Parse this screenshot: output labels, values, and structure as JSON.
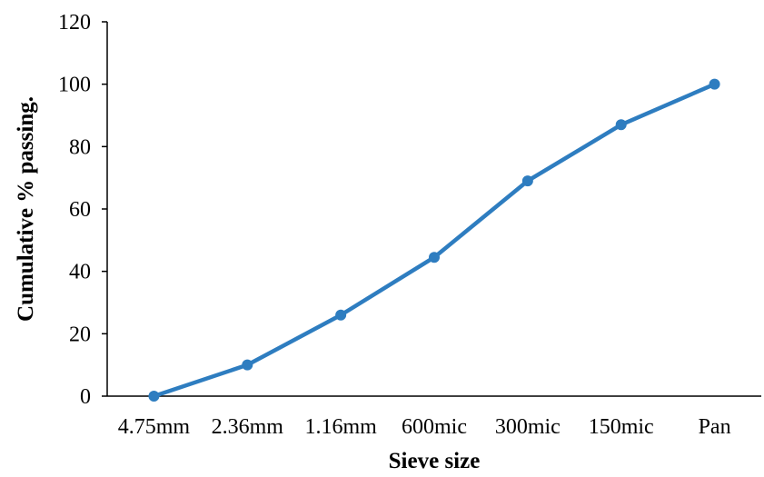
{
  "chart_data": {
    "type": "line",
    "title": "",
    "xlabel": "Sieve size",
    "ylabel": "Cumulative % passing.",
    "categories": [
      "4.75mm",
      "2.36mm",
      "1.16mm",
      "600mic",
      "300mic",
      "150mic",
      "Pan"
    ],
    "series": [
      {
        "values": [
          0,
          10,
          26,
          44.5,
          69,
          87,
          100
        ]
      }
    ],
    "ylim": [
      0,
      120
    ],
    "yticks": [
      "0",
      "20",
      "40",
      "60",
      "80",
      "100",
      "120"
    ],
    "grid": false,
    "legend": "none",
    "colors": {
      "series": "#2E7DC0",
      "axis": "#000000"
    }
  }
}
